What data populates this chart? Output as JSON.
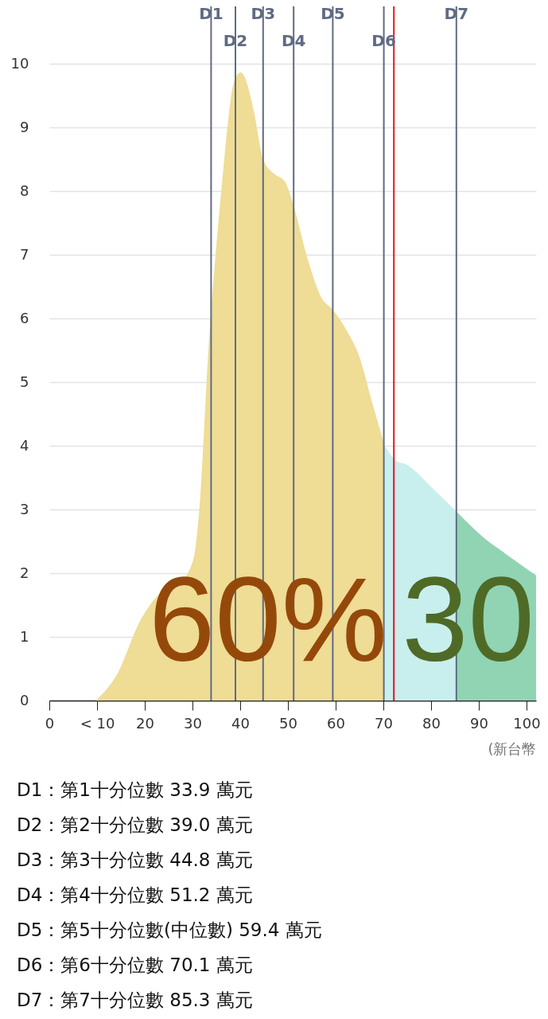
{
  "chart_data": {
    "type": "area",
    "xlabel": "(新台幣",
    "xlim": [
      0,
      102
    ],
    "ylim": [
      0,
      10.9
    ],
    "xticks": [
      0,
      {
        "value": 10,
        "label": "< 10"
      },
      20,
      30,
      40,
      50,
      60,
      70,
      80,
      90,
      100
    ],
    "yticks": [
      0,
      1,
      2,
      3,
      4,
      5,
      6,
      7,
      8,
      9,
      10
    ],
    "grid": "y",
    "series": [
      {
        "color": "#efdc95",
        "x": [
          10,
          14.3,
          19.2,
          23,
          27,
          30.3,
          31.6,
          33.5,
          36.2,
          38.8,
          40.1,
          42.7,
          44.6,
          47.2,
          49.2,
          51.1,
          53.7,
          57,
          59,
          62.2,
          64.8,
          67.4,
          70.1
        ],
        "values": [
          0,
          0.4,
          1.25,
          1.65,
          1.8,
          2.2,
          3.0,
          5.5,
          8.0,
          9.7,
          9.85,
          9.25,
          8.5,
          8.25,
          8.15,
          7.75,
          7.0,
          6.3,
          6.15,
          5.8,
          5.4,
          4.7,
          4.0
        ]
      },
      {
        "color": "#c8efee",
        "x": [
          70.1,
          72.6,
          74.6,
          80.5,
          85.3
        ],
        "values": [
          4.0,
          3.75,
          3.7,
          3.3,
          2.95
        ]
      },
      {
        "color": "#90d4b3",
        "x": [
          85.3,
          90.9,
          95.4,
          102
        ],
        "values": [
          2.95,
          2.55,
          2.3,
          1.95
        ]
      }
    ],
    "ref_lines": [
      {
        "axis": "x",
        "value": 33.9,
        "label": "D1",
        "color": "#5f6b82"
      },
      {
        "axis": "x",
        "value": 39.0,
        "label": "D2",
        "color": "#5f6b82"
      },
      {
        "axis": "x",
        "value": 44.8,
        "label": "D3",
        "color": "#5f6b82"
      },
      {
        "axis": "x",
        "value": 51.2,
        "label": "D4",
        "color": "#5f6b82"
      },
      {
        "axis": "x",
        "value": 59.4,
        "label": "D5",
        "color": "#5f6b82"
      },
      {
        "axis": "x",
        "value": 70.1,
        "label": "D6",
        "color": "#5f6b82"
      },
      {
        "axis": "x",
        "value": 85.3,
        "label": "D7",
        "color": "#5f6b82"
      },
      {
        "axis": "x",
        "value": 72.2,
        "color": "#e8141b"
      }
    ],
    "annotations": [
      "60%",
      "30",
      "D1：第1十分位數 33.9 萬元",
      "D2：第2十分位數 39.0 萬元",
      "D3：第3十分位數 44.8 萬元",
      "D4：第4十分位數 51.2 萬元",
      "D5：第5十分位數(中位數) 59.4 萬元",
      "D6：第6十分位數 70.1 萬元",
      "D7：第7十分位數 85.3 萬元"
    ]
  }
}
